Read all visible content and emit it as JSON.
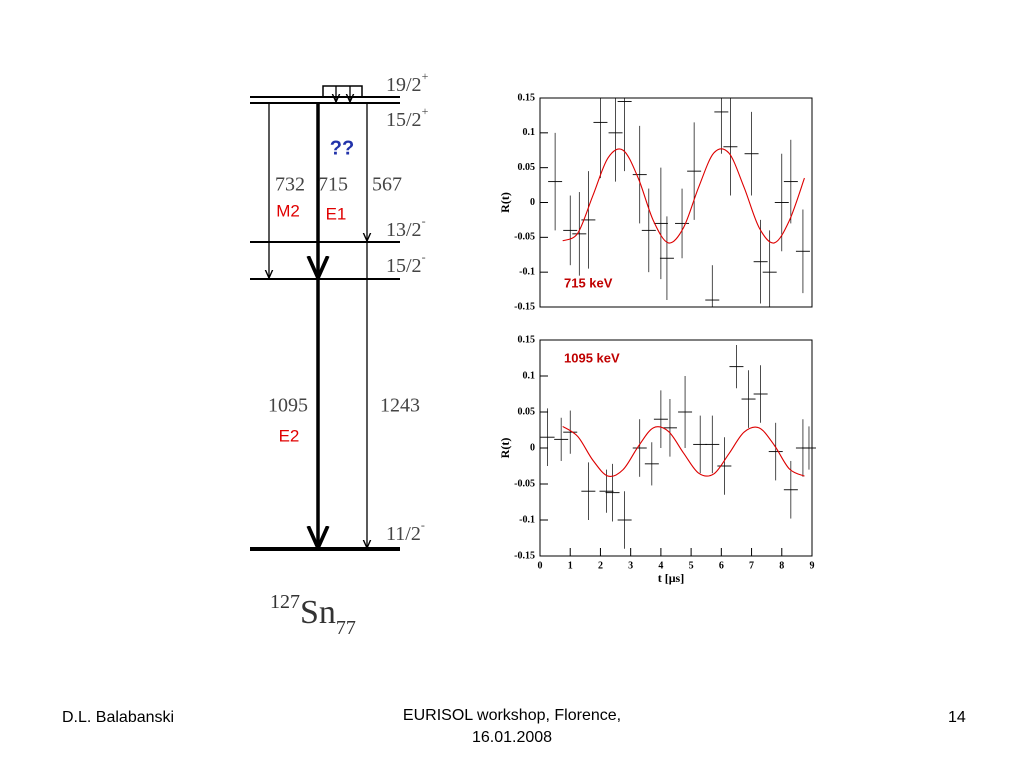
{
  "level_scheme": {
    "levels": [
      {
        "spin": "19/2",
        "parity": "+"
      },
      {
        "spin": "15/2",
        "parity": "+"
      },
      {
        "spin": "13/2",
        "parity": "-"
      },
      {
        "spin": "15/2",
        "parity": "-"
      },
      {
        "spin": "11/2",
        "parity": "-"
      }
    ],
    "transitions": [
      {
        "energy": "732",
        "multipolarity": "M2"
      },
      {
        "energy": "715",
        "multipolarity": "E1"
      },
      {
        "energy": "567"
      },
      {
        "energy": "1095",
        "multipolarity": "E2"
      },
      {
        "energy": "1243"
      }
    ],
    "question": "??",
    "nucleus": {
      "mass": "127",
      "symbol": "Sn",
      "neutrons": "77"
    }
  },
  "chart_data": [
    {
      "type": "scatter",
      "annotation": "715  keV",
      "ylabel": "R(t)",
      "xlim": [
        0,
        9
      ],
      "ylim": [
        -0.15,
        0.15
      ],
      "yticks": [
        -0.15,
        -0.1,
        -0.05,
        0,
        0.05,
        0.1,
        0.15
      ],
      "points": {
        "color": "#000000",
        "x": [
          0.5,
          1.0,
          1.3,
          1.6,
          2.0,
          2.5,
          2.8,
          3.3,
          3.6,
          4.0,
          4.2,
          4.7,
          5.1,
          5.7,
          6.0,
          6.3,
          7.0,
          7.3,
          7.6,
          8.0,
          8.3,
          8.7
        ],
        "values": [
          0.03,
          -0.04,
          -0.045,
          -0.025,
          0.115,
          0.1,
          0.145,
          0.04,
          -0.04,
          -0.03,
          -0.08,
          -0.03,
          0.045,
          -0.14,
          0.13,
          0.08,
          0.07,
          -0.085,
          -0.1,
          0.0,
          0.03,
          -0.07
        ],
        "errors": [
          0.07,
          0.05,
          0.06,
          0.07,
          0.08,
          0.07,
          0.1,
          0.07,
          0.06,
          0.08,
          0.06,
          0.05,
          0.07,
          0.05,
          0.06,
          0.07,
          0.06,
          0.06,
          0.06,
          0.07,
          0.06,
          0.06
        ]
      },
      "fit": {
        "color": "#dd0000",
        "x": [
          0.75,
          1.25,
          1.75,
          2.25,
          2.75,
          3.25,
          3.75,
          4.25,
          4.75,
          5.25,
          5.75,
          6.25,
          6.75,
          7.25,
          7.75,
          8.25,
          8.75
        ],
        "values": [
          -0.055,
          -0.044,
          0.01,
          0.064,
          0.075,
          0.035,
          -0.026,
          -0.058,
          -0.036,
          0.022,
          0.071,
          0.071,
          0.022,
          -0.036,
          -0.058,
          -0.026,
          0.035
        ]
      }
    },
    {
      "type": "scatter",
      "annotation": "1095 keV",
      "ylabel": "R(t)",
      "xlabel": "t [μs]",
      "xlim": [
        0,
        9
      ],
      "xticks": [
        0,
        1,
        2,
        3,
        4,
        5,
        6,
        7,
        8,
        9
      ],
      "ylim": [
        -0.15,
        0.15
      ],
      "yticks": [
        -0.15,
        -0.1,
        -0.05,
        0,
        0.05,
        0.1,
        0.15
      ],
      "points": {
        "color": "#000000",
        "x": [
          0.25,
          0.7,
          1.0,
          1.6,
          2.2,
          2.4,
          2.8,
          3.3,
          3.7,
          4.0,
          4.3,
          4.8,
          5.3,
          5.7,
          6.1,
          6.5,
          6.9,
          7.3,
          7.8,
          8.3,
          8.7,
          8.9
        ],
        "values": [
          0.015,
          0.012,
          0.022,
          -0.06,
          -0.06,
          -0.062,
          -0.1,
          0.0,
          -0.022,
          0.04,
          0.028,
          0.05,
          0.005,
          0.005,
          -0.025,
          0.113,
          0.068,
          0.075,
          -0.005,
          -0.058,
          0.0,
          0.0
        ],
        "errors": [
          0.04,
          0.03,
          0.03,
          0.04,
          0.03,
          0.04,
          0.04,
          0.04,
          0.03,
          0.04,
          0.04,
          0.05,
          0.04,
          0.04,
          0.04,
          0.03,
          0.04,
          0.04,
          0.04,
          0.04,
          0.04,
          0.03
        ]
      },
      "fit": {
        "color": "#dd0000",
        "x": [
          0.75,
          1.25,
          1.75,
          2.25,
          2.75,
          3.25,
          3.75,
          4.25,
          4.75,
          5.25,
          5.75,
          6.25,
          6.75,
          7.25,
          7.75,
          8.25,
          8.75
        ],
        "values": [
          0.03,
          0.016,
          -0.017,
          -0.039,
          -0.03,
          0.002,
          0.028,
          0.023,
          -0.007,
          -0.035,
          -0.036,
          -0.008,
          0.022,
          0.028,
          0.004,
          -0.029,
          -0.039
        ]
      }
    }
  ],
  "footer": {
    "author": "D.L. Balabanski",
    "event": "EURISOL workshop, Florence, 16.01.2008",
    "page": "14"
  }
}
